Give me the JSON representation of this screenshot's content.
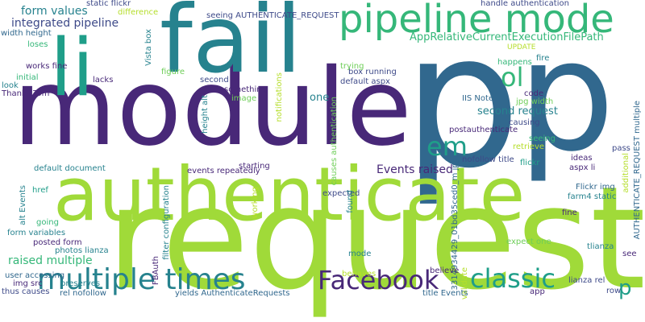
{
  "palette": {
    "purple": "#482878",
    "indigo": "#3e4a89",
    "blue": "#31688e",
    "teal": "#26828e",
    "teal_green": "#1f9e89",
    "green": "#35b779",
    "light_green": "#6ece58",
    "lime": "#b5de2b",
    "yellow_green": "#a0da39"
  },
  "words": [
    {
      "text": "request",
      "color": "#a0da39"
    },
    {
      "text": "p",
      "color": "#31688e"
    },
    {
      "text": "p",
      "color": "#31688e"
    },
    {
      "text": "module",
      "color": "#482878"
    },
    {
      "text": "fail",
      "color": "#26828e"
    },
    {
      "text": "li",
      "color": "#1f9e89"
    },
    {
      "text": "authenticate",
      "color": "#a0da39"
    },
    {
      "text": "pipeline mode",
      "color": "#35b779"
    },
    {
      "text": "multiple times",
      "color": "#26828e"
    },
    {
      "text": "Facebook",
      "color": "#482878"
    },
    {
      "text": "classic",
      "color": "#1f9e89"
    },
    {
      "text": "em",
      "color": "#1f9e89"
    },
    {
      "text": "ol",
      "color": "#35b779"
    },
    {
      "text": "p",
      "color": "#1f9e89"
    },
    {
      "text": "integrated pipeline",
      "color": "#3e4a89"
    },
    {
      "text": "form values",
      "color": "#26828e"
    },
    {
      "text": "AppRelativeCurrentExecutionFilePath",
      "color": "#35b779"
    },
    {
      "text": "Events raised",
      "color": "#482878"
    },
    {
      "text": "raised multiple",
      "color": "#35b779"
    },
    {
      "text": "second request",
      "color": "#26828e"
    },
    {
      "text": "one",
      "color": "#26828e"
    },
    {
      "text": "static flickr",
      "color": "#3e4a89"
    },
    {
      "text": "difference",
      "color": "#b5de2b"
    },
    {
      "text": "seeing AUTHENTICATE_REQUEST",
      "color": "#3e4a89"
    },
    {
      "text": "handle authentication",
      "color": "#3e4a89"
    },
    {
      "text": "width height",
      "color": "#31688e"
    },
    {
      "text": "loses",
      "color": "#35b779"
    },
    {
      "text": "Vista box",
      "color": "#26828e"
    },
    {
      "text": "box running",
      "color": "#3e4a89"
    },
    {
      "text": "default aspx",
      "color": "#3e4a89"
    },
    {
      "text": "trying",
      "color": "#6ece58"
    },
    {
      "text": "UPDATE",
      "color": "#b5de2b"
    },
    {
      "text": "happens",
      "color": "#35b779"
    },
    {
      "text": "fire",
      "color": "#26828e"
    },
    {
      "text": "works fine",
      "color": "#482878"
    },
    {
      "text": "initial",
      "color": "#35b779"
    },
    {
      "text": "lacks",
      "color": "#482878"
    },
    {
      "text": "figure",
      "color": "#6ece58"
    },
    {
      "text": "look",
      "color": "#26828e"
    },
    {
      "text": "second",
      "color": "#3e4a89"
    },
    {
      "text": "something",
      "color": "#482878"
    },
    {
      "text": "Thanks Tom",
      "color": "#482878"
    },
    {
      "text": "image",
      "color": "#6ece58"
    },
    {
      "text": "height alt",
      "color": "#26828e"
    },
    {
      "text": "notifications",
      "color": "#b5de2b"
    },
    {
      "text": "causes authentication",
      "color": "#6ece58"
    },
    {
      "text": "IIS Note",
      "color": "#31688e"
    },
    {
      "text": "code",
      "color": "#482878"
    },
    {
      "text": "jpg width",
      "color": "#6ece58"
    },
    {
      "text": "causing",
      "color": "#3e4a89"
    },
    {
      "text": "postauthenticate",
      "color": "#482878"
    },
    {
      "text": "seeing",
      "color": "#35b779"
    },
    {
      "text": "retrieve",
      "color": "#b5de2b"
    },
    {
      "text": "pass",
      "color": "#3e4a89"
    },
    {
      "text": "AUTHENTICATE_REQUEST multiple",
      "color": "#31688e"
    },
    {
      "text": "additional",
      "color": "#b5de2b"
    },
    {
      "text": "default document",
      "color": "#26828e"
    },
    {
      "text": "events repeatedly",
      "color": "#482878"
    },
    {
      "text": "starting",
      "color": "#482878"
    },
    {
      "text": "nofollow title",
      "color": "#3e4a89"
    },
    {
      "text": "3314934429_01bd35ced0_m jpg",
      "color": "#31688e"
    },
    {
      "text": "ideas",
      "color": "#482878"
    },
    {
      "text": "flickr",
      "color": "#1f9e89"
    },
    {
      "text": "aspx li",
      "color": "#482878"
    },
    {
      "text": "Flickr img",
      "color": "#31688e"
    },
    {
      "text": "farm4 static",
      "color": "#26828e"
    },
    {
      "text": "alt Events",
      "color": "#26828e"
    },
    {
      "text": "href",
      "color": "#1f9e89"
    },
    {
      "text": "filter configuration",
      "color": "#26828e"
    },
    {
      "text": "working",
      "color": "#b5de2b"
    },
    {
      "text": "expected",
      "color": "#3e4a89"
    },
    {
      "text": "found",
      "color": "#26828e"
    },
    {
      "text": "fine",
      "color": "#482878"
    },
    {
      "text": "going",
      "color": "#35b779"
    },
    {
      "text": "form variables",
      "color": "#26828e"
    },
    {
      "text": "posted form",
      "color": "#482878"
    },
    {
      "text": "photos lianza",
      "color": "#26828e"
    },
    {
      "text": "FBAuth",
      "color": "#482878"
    },
    {
      "text": "mode",
      "color": "#26828e"
    },
    {
      "text": "expect one",
      "color": "#6ece58"
    },
    {
      "text": "tlianza",
      "color": "#26828e"
    },
    {
      "text": "user accessing",
      "color": "#31688e"
    },
    {
      "text": "img src",
      "color": "#482878"
    },
    {
      "text": "preserves",
      "color": "#26828e"
    },
    {
      "text": "thus causes",
      "color": "#3e4a89"
    },
    {
      "text": "behaves",
      "color": "#b5de2b"
    },
    {
      "text": "believe",
      "color": "#482878"
    },
    {
      "text": "validate",
      "color": "#b5de2b"
    },
    {
      "text": "see",
      "color": "#482878"
    },
    {
      "text": "lianza rel",
      "color": "#3e4a89"
    },
    {
      "text": "rel nofollow",
      "color": "#31688e"
    },
    {
      "text": "yields AuthenticateRequests",
      "color": "#31688e"
    },
    {
      "text": "title Events",
      "color": "#31688e"
    },
    {
      "text": "app",
      "color": "#482878"
    },
    {
      "text": "row",
      "color": "#3e4a89"
    }
  ]
}
